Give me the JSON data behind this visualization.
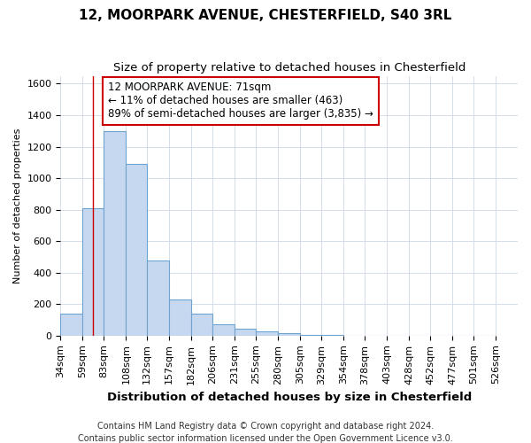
{
  "title1": "12, MOORPARK AVENUE, CHESTERFIELD, S40 3RL",
  "title2": "Size of property relative to detached houses in Chesterfield",
  "xlabel": "Distribution of detached houses by size in Chesterfield",
  "ylabel": "Number of detached properties",
  "footer1": "Contains HM Land Registry data © Crown copyright and database right 2024.",
  "footer2": "Contains public sector information licensed under the Open Government Licence v3.0.",
  "bin_edges": [
    34,
    59,
    83,
    108,
    132,
    157,
    182,
    206,
    231,
    255,
    280,
    305,
    329,
    354,
    378,
    403,
    428,
    452,
    477,
    501,
    526
  ],
  "bar_heights": [
    140,
    810,
    1300,
    1090,
    480,
    230,
    140,
    70,
    45,
    25,
    15,
    7,
    3,
    1,
    0,
    0,
    0,
    0,
    0,
    0
  ],
  "bar_color": "#c5d8f0",
  "bar_edge_color": "#6ea3d0",
  "property_size": 71,
  "annotation_line1": "12 MOORPARK AVENUE: 71sqm",
  "annotation_line2": "← 11% of detached houses are smaller (463)",
  "annotation_line3": "89% of semi-detached houses are larger (3,835) →",
  "annotation_box_color": "#ffffff",
  "annotation_box_edge_color": "#cc0000",
  "vline_color": "#cc0000",
  "ylim": [
    0,
    1650
  ],
  "yticks": [
    0,
    200,
    400,
    600,
    800,
    1000,
    1200,
    1400,
    1600
  ],
  "grid_color": "#d0d8e8",
  "bg_color": "#ffffff",
  "title1_fontsize": 11,
  "title2_fontsize": 9.5,
  "xlabel_fontsize": 9.5,
  "ylabel_fontsize": 8,
  "tick_fontsize": 8,
  "footer_fontsize": 7
}
